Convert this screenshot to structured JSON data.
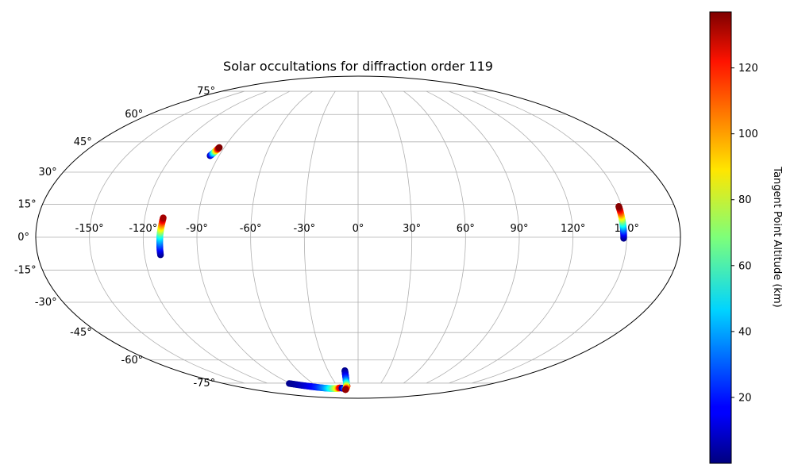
{
  "chart_data": {
    "type": "scatter",
    "projection": "mollweide",
    "title": "Solar occultations for diffraction order 119",
    "xlabel": "",
    "ylabel": "",
    "lon_ticks": [
      -150,
      -120,
      -90,
      -60,
      -30,
      0,
      30,
      60,
      90,
      120,
      150
    ],
    "lat_ticks": [
      -75,
      -60,
      -45,
      -30,
      -15,
      0,
      15,
      30,
      45,
      60,
      75
    ],
    "lon_tick_labels": [
      "-150°",
      "-120°",
      "-90°",
      "-60°",
      "-30°",
      "0°",
      "30°",
      "60°",
      "90°",
      "120°",
      "150°"
    ],
    "lat_tick_labels": [
      "-75°",
      "-60°",
      "-45°",
      "-30°",
      "-15°",
      "0°",
      "15°",
      "30°",
      "45°",
      "60°",
      "75°"
    ],
    "grid": true,
    "colormap": "jet",
    "colorbar": {
      "label": "Tangent Point Altitude (km)",
      "range": [
        0,
        137
      ],
      "ticks": [
        20,
        40,
        60,
        80,
        100,
        120
      ],
      "tick_labels": [
        "20",
        "40",
        "60",
        "80",
        "100",
        "120"
      ]
    },
    "series": [
      {
        "points": [
          {
            "lon": -95.8,
            "lat": 38.0,
            "alt": 2
          },
          {
            "lon": -95.4,
            "lat": 38.5,
            "alt": 18
          },
          {
            "lon": -95.0,
            "lat": 39.1,
            "alt": 36
          },
          {
            "lon": -94.6,
            "lat": 39.7,
            "alt": 55
          },
          {
            "lon": -94.3,
            "lat": 40.2,
            "alt": 72
          },
          {
            "lon": -94.0,
            "lat": 40.7,
            "alt": 90
          },
          {
            "lon": -93.7,
            "lat": 41.2,
            "alt": 108
          },
          {
            "lon": -93.5,
            "lat": 41.7,
            "alt": 126
          },
          {
            "lon": -93.3,
            "lat": 42.1,
            "alt": 137
          }
        ]
      },
      {
        "points": [
          {
            "lon": -111.0,
            "lat": -8.0,
            "alt": 1
          },
          {
            "lon": -111.0,
            "lat": -6.0,
            "alt": 12
          },
          {
            "lon": -110.9,
            "lat": -4.0,
            "alt": 24
          },
          {
            "lon": -110.8,
            "lat": -2.0,
            "alt": 36
          },
          {
            "lon": -110.7,
            "lat": 0.0,
            "alt": 48
          },
          {
            "lon": -110.6,
            "lat": 1.5,
            "alt": 60
          },
          {
            "lon": -110.4,
            "lat": 3.0,
            "alt": 74
          },
          {
            "lon": -110.2,
            "lat": 4.5,
            "alt": 88
          },
          {
            "lon": -110.0,
            "lat": 6.0,
            "alt": 102
          },
          {
            "lon": -109.8,
            "lat": 7.5,
            "alt": 118
          },
          {
            "lon": -109.6,
            "lat": 8.8,
            "alt": 132
          }
        ]
      },
      {
        "points": [
          {
            "lon": 148.3,
            "lat": -0.5,
            "alt": 1
          },
          {
            "lon": 148.3,
            "lat": 1.0,
            "alt": 10
          },
          {
            "lon": 148.3,
            "lat": 2.5,
            "alt": 22
          },
          {
            "lon": 148.3,
            "lat": 4.0,
            "alt": 34
          },
          {
            "lon": 148.3,
            "lat": 5.5,
            "alt": 48
          },
          {
            "lon": 148.3,
            "lat": 7.0,
            "alt": 62
          },
          {
            "lon": 148.3,
            "lat": 8.5,
            "alt": 78
          },
          {
            "lon": 148.3,
            "lat": 10.0,
            "alt": 94
          },
          {
            "lon": 148.3,
            "lat": 11.5,
            "alt": 110
          },
          {
            "lon": 148.3,
            "lat": 13.0,
            "alt": 126
          },
          {
            "lon": 148.3,
            "lat": 14.0,
            "alt": 136
          }
        ]
      },
      {
        "points": [
          {
            "lon": -92.0,
            "lat": -75.3,
            "alt": 2
          },
          {
            "lon": -87.0,
            "lat": -75.9,
            "alt": 4
          },
          {
            "lon": -82.0,
            "lat": -76.5,
            "alt": 7
          },
          {
            "lon": -77.0,
            "lat": -77.0,
            "alt": 10
          },
          {
            "lon": -72.0,
            "lat": -77.5,
            "alt": 14
          },
          {
            "lon": -67.0,
            "lat": -77.9,
            "alt": 18
          },
          {
            "lon": -62.0,
            "lat": -78.3,
            "alt": 23
          },
          {
            "lon": -57.0,
            "lat": -78.6,
            "alt": 30
          },
          {
            "lon": -52.0,
            "lat": -78.9,
            "alt": 38
          },
          {
            "lon": -47.0,
            "lat": -79.1,
            "alt": 48
          },
          {
            "lon": -42.0,
            "lat": -79.2,
            "alt": 60
          },
          {
            "lon": -37.0,
            "lat": -79.2,
            "alt": 75
          },
          {
            "lon": -33.0,
            "lat": -79.1,
            "alt": 90
          },
          {
            "lon": -30.5,
            "lat": -78.9,
            "alt": 105
          },
          {
            "lon": -29.0,
            "lat": -78.7,
            "alt": 120
          }
        ]
      },
      {
        "points": [
          {
            "lon": -26.0,
            "lat": -78.9,
            "alt": 2
          },
          {
            "lon": -24.5,
            "lat": -79.0,
            "alt": 8
          },
          {
            "lon": -23.0,
            "lat": -79.0,
            "alt": 15
          },
          {
            "lon": -21.5,
            "lat": -79.0,
            "alt": 25
          },
          {
            "lon": -20.0,
            "lat": -79.0,
            "alt": 38
          },
          {
            "lon": -18.5,
            "lat": -78.8,
            "alt": 55
          },
          {
            "lon": -17.5,
            "lat": -78.3,
            "alt": 75
          },
          {
            "lon": -16.8,
            "lat": -77.8,
            "alt": 95
          },
          {
            "lon": -16.3,
            "lat": -77.3,
            "alt": 115
          },
          {
            "lon": -16.0,
            "lat": -76.9,
            "alt": 130
          }
        ]
      },
      {
        "points": [
          {
            "lon": -13.2,
            "lat": -66.5,
            "alt": 1
          },
          {
            "lon": -13.4,
            "lat": -68.0,
            "alt": 6
          },
          {
            "lon": -13.7,
            "lat": -69.5,
            "alt": 12
          },
          {
            "lon": -14.0,
            "lat": -71.0,
            "alt": 20
          },
          {
            "lon": -14.4,
            "lat": -72.4,
            "alt": 28
          },
          {
            "lon": -14.9,
            "lat": -73.8,
            "alt": 38
          },
          {
            "lon": -15.5,
            "lat": -75.1,
            "alt": 50
          },
          {
            "lon": -16.3,
            "lat": -76.4,
            "alt": 64
          },
          {
            "lon": -17.3,
            "lat": -77.6,
            "alt": 80
          },
          {
            "lon": -18.5,
            "lat": -78.6,
            "alt": 96
          },
          {
            "lon": -19.8,
            "lat": -79.4,
            "alt": 112
          },
          {
            "lon": -21.0,
            "lat": -79.9,
            "alt": 124
          },
          {
            "lon": -22.0,
            "lat": -80.2,
            "alt": 134
          }
        ]
      }
    ]
  }
}
